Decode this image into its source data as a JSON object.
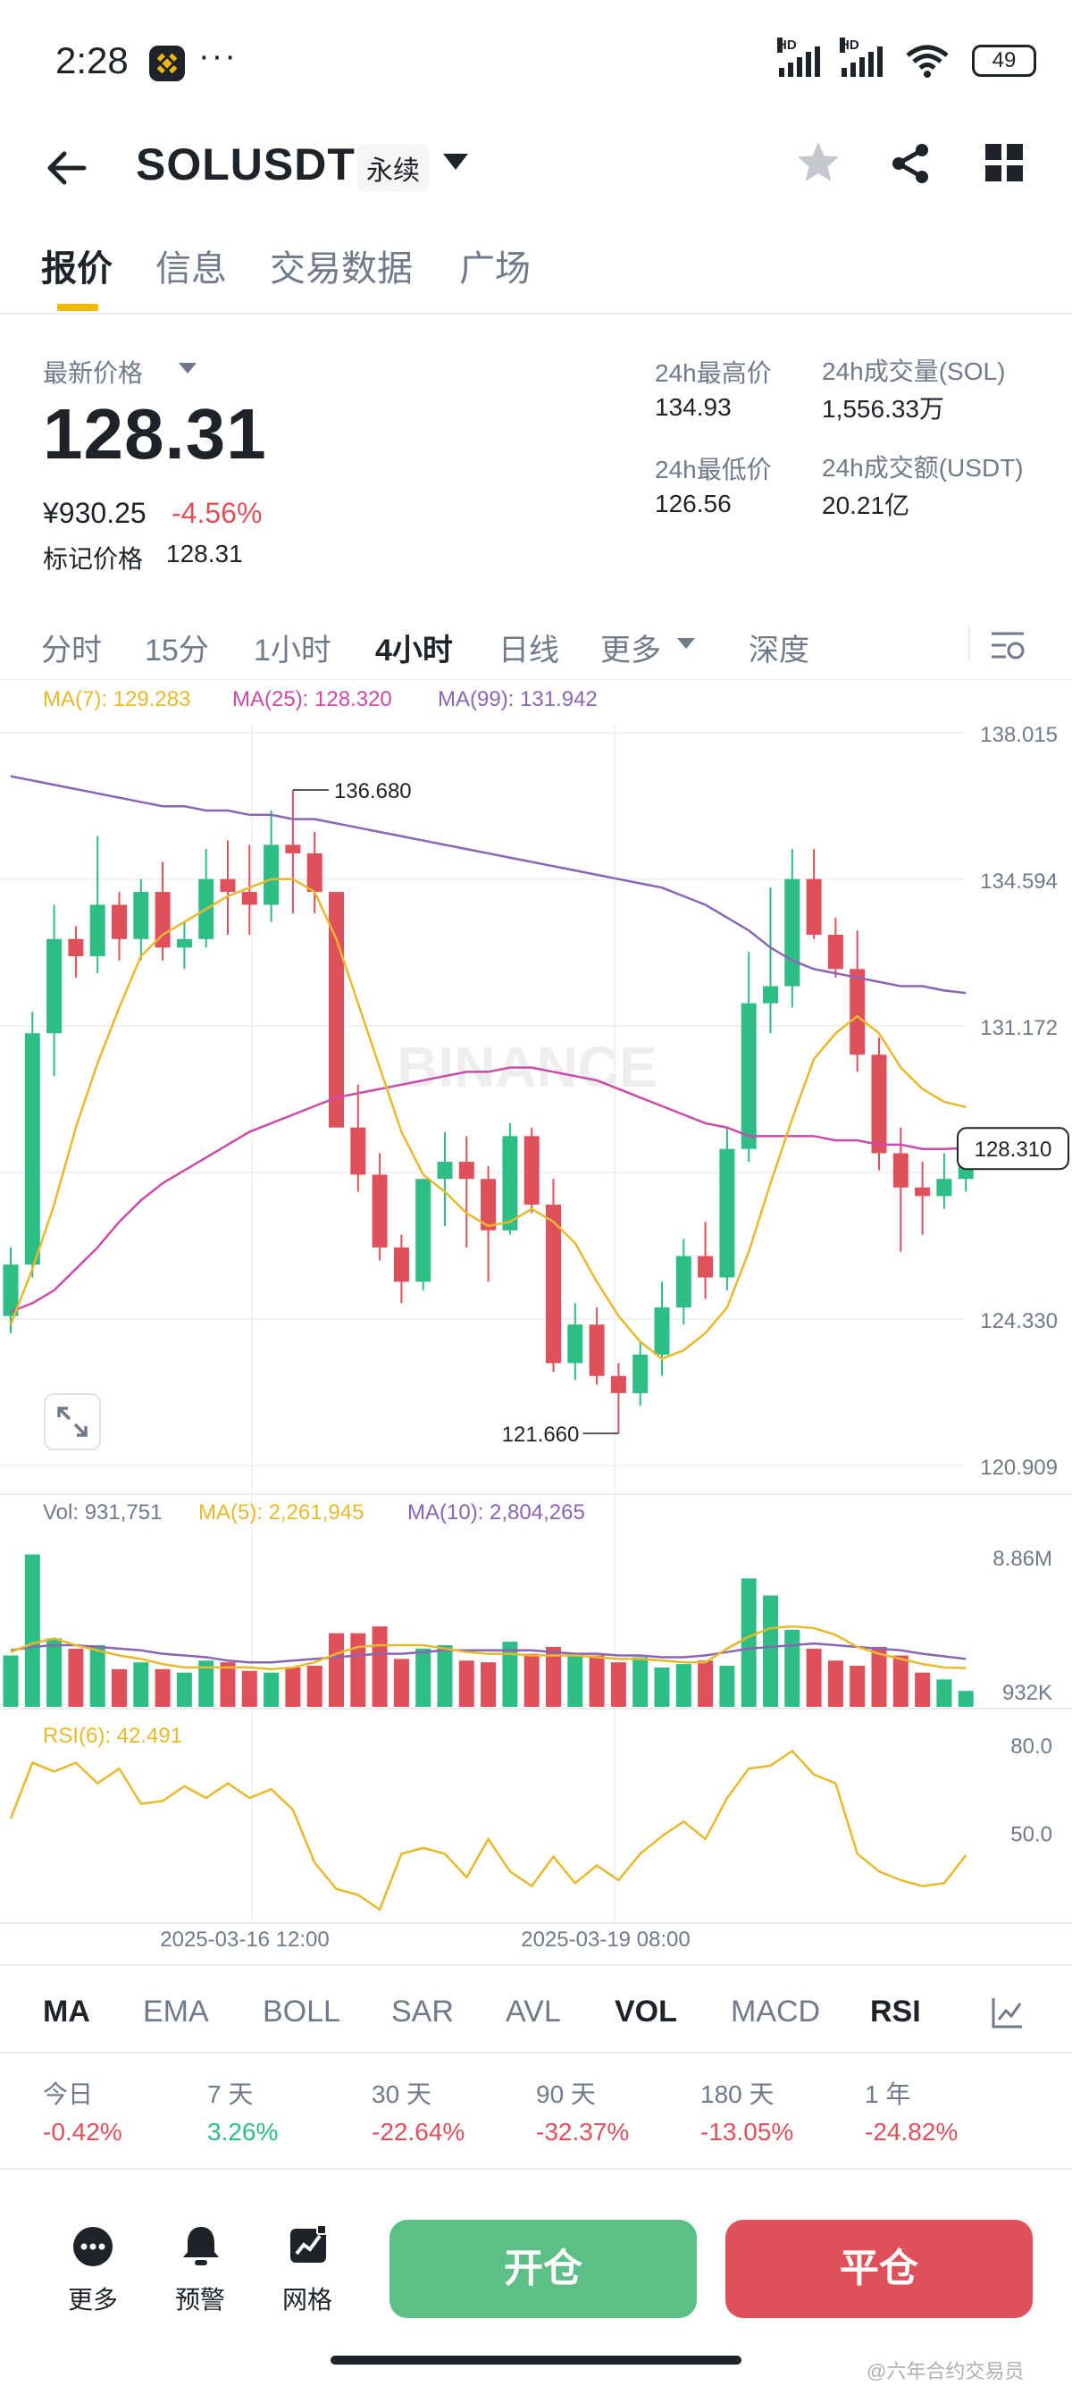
{
  "status_bar": {
    "time": "2:28",
    "dots": "···",
    "battery": "49",
    "hd1": "HD",
    "hd2": "HD"
  },
  "header": {
    "title": "SOLUSDT",
    "badge": "永续"
  },
  "tabs": [
    "报价",
    "信息",
    "交易数据",
    "广场"
  ],
  "price_info": {
    "last_price_label": "最新价格",
    "last_price": "128.31",
    "cny_price": "¥930.25",
    "change_pct": "-4.56%",
    "mark_price_label": "标记价格",
    "mark_price": "128.31",
    "high_label": "24h最高价",
    "high": "134.93",
    "low_label": "24h最低价",
    "low": "126.56",
    "vol_sol_label": "24h成交量(SOL)",
    "vol_sol": "1,556.33万",
    "vol_usdt_label": "24h成交额(USDT)",
    "vol_usdt": "20.21亿"
  },
  "intervals": [
    "分时",
    "15分",
    "1小时",
    "4小时",
    "日线",
    "更多",
    "深度"
  ],
  "active_interval": "4小时",
  "chart_data": {
    "type": "candlestick",
    "ma_legend": {
      "ma7": "MA(7): 129.283",
      "ma25": "MA(25): 128.320",
      "ma99": "MA(99): 131.942"
    },
    "ylim": [
      120.909,
      138.015
    ],
    "y_ticks": [
      "138.015",
      "134.594",
      "131.172",
      "124.330",
      "120.909"
    ],
    "price_tag": "128.310",
    "high_label": "136.680",
    "low_label": "121.660",
    "watermark": "BINANCE",
    "candles": [
      {
        "o": 124.4,
        "h": 126.0,
        "l": 124.0,
        "c": 125.6
      },
      {
        "o": 125.6,
        "h": 131.5,
        "l": 125.3,
        "c": 131.0
      },
      {
        "o": 131.0,
        "h": 134.0,
        "l": 130.0,
        "c": 133.2
      },
      {
        "o": 133.2,
        "h": 133.5,
        "l": 132.3,
        "c": 132.8
      },
      {
        "o": 132.8,
        "h": 135.6,
        "l": 132.4,
        "c": 134.0
      },
      {
        "o": 134.0,
        "h": 134.3,
        "l": 132.7,
        "c": 133.2
      },
      {
        "o": 133.2,
        "h": 134.6,
        "l": 132.7,
        "c": 134.3
      },
      {
        "o": 134.3,
        "h": 135.0,
        "l": 132.7,
        "c": 133.0
      },
      {
        "o": 133.0,
        "h": 133.6,
        "l": 132.5,
        "c": 133.2
      },
      {
        "o": 133.2,
        "h": 135.3,
        "l": 133.0,
        "c": 134.6
      },
      {
        "o": 134.6,
        "h": 135.5,
        "l": 133.3,
        "c": 134.3
      },
      {
        "o": 134.3,
        "h": 135.4,
        "l": 133.3,
        "c": 134.0
      },
      {
        "o": 134.0,
        "h": 136.2,
        "l": 133.6,
        "c": 135.4
      },
      {
        "o": 135.4,
        "h": 136.68,
        "l": 133.8,
        "c": 135.2
      },
      {
        "o": 135.2,
        "h": 135.7,
        "l": 133.8,
        "c": 134.3
      },
      {
        "o": 134.3,
        "h": 134.3,
        "l": 128.8,
        "c": 128.8
      },
      {
        "o": 128.8,
        "h": 129.8,
        "l": 127.3,
        "c": 127.7
      },
      {
        "o": 127.7,
        "h": 128.2,
        "l": 125.7,
        "c": 126.0
      },
      {
        "o": 126.0,
        "h": 126.3,
        "l": 124.7,
        "c": 125.2
      },
      {
        "o": 125.2,
        "h": 127.6,
        "l": 125.0,
        "c": 127.6
      },
      {
        "o": 127.6,
        "h": 128.7,
        "l": 126.5,
        "c": 128.0
      },
      {
        "o": 128.0,
        "h": 128.6,
        "l": 126.0,
        "c": 127.6
      },
      {
        "o": 127.6,
        "h": 127.9,
        "l": 125.2,
        "c": 126.4
      },
      {
        "o": 126.4,
        "h": 128.9,
        "l": 126.3,
        "c": 128.6
      },
      {
        "o": 128.6,
        "h": 128.8,
        "l": 126.8,
        "c": 127.0
      },
      {
        "o": 127.0,
        "h": 127.6,
        "l": 123.1,
        "c": 123.3
      },
      {
        "o": 123.3,
        "h": 124.7,
        "l": 122.9,
        "c": 124.2
      },
      {
        "o": 124.2,
        "h": 124.6,
        "l": 122.8,
        "c": 123.0
      },
      {
        "o": 123.0,
        "h": 123.3,
        "l": 121.66,
        "c": 122.6
      },
      {
        "o": 122.6,
        "h": 123.8,
        "l": 122.3,
        "c": 123.5
      },
      {
        "o": 123.5,
        "h": 125.2,
        "l": 123.0,
        "c": 124.6
      },
      {
        "o": 124.6,
        "h": 126.2,
        "l": 124.2,
        "c": 125.8
      },
      {
        "o": 125.8,
        "h": 126.6,
        "l": 124.8,
        "c": 125.3
      },
      {
        "o": 125.3,
        "h": 128.8,
        "l": 125.0,
        "c": 128.3
      },
      {
        "o": 128.3,
        "h": 132.9,
        "l": 128.0,
        "c": 131.7
      },
      {
        "o": 131.7,
        "h": 134.4,
        "l": 131.0,
        "c": 132.1
      },
      {
        "o": 132.1,
        "h": 135.3,
        "l": 131.6,
        "c": 134.6
      },
      {
        "o": 134.6,
        "h": 135.3,
        "l": 133.2,
        "c": 133.3
      },
      {
        "o": 133.3,
        "h": 133.7,
        "l": 132.3,
        "c": 132.5
      },
      {
        "o": 132.5,
        "h": 133.4,
        "l": 130.1,
        "c": 130.5
      },
      {
        "o": 130.5,
        "h": 130.9,
        "l": 127.8,
        "c": 128.2
      },
      {
        "o": 128.2,
        "h": 128.8,
        "l": 125.9,
        "c": 127.4
      },
      {
        "o": 127.4,
        "h": 128.0,
        "l": 126.3,
        "c": 127.2
      },
      {
        "o": 127.2,
        "h": 128.2,
        "l": 126.9,
        "c": 127.6
      },
      {
        "o": 127.6,
        "h": 128.6,
        "l": 127.3,
        "c": 128.31
      }
    ],
    "ma7": [
      124.2,
      125.5,
      127.0,
      128.8,
      130.3,
      131.6,
      132.8,
      133.3,
      133.6,
      133.9,
      134.2,
      134.4,
      134.6,
      134.6,
      134.3,
      133.2,
      131.7,
      130.2,
      128.7,
      127.7,
      127.3,
      126.8,
      126.5,
      126.6,
      126.9,
      126.6,
      126.1,
      125.2,
      124.4,
      123.8,
      123.4,
      123.6,
      124.0,
      124.6,
      125.9,
      127.5,
      129.0,
      130.4,
      131.0,
      131.4,
      131.0,
      130.2,
      129.7,
      129.4,
      129.28
    ],
    "ma25": [
      124.5,
      124.7,
      125.0,
      125.5,
      126.0,
      126.6,
      127.1,
      127.5,
      127.8,
      128.1,
      128.4,
      128.7,
      128.9,
      129.1,
      129.3,
      129.5,
      129.6,
      129.7,
      129.8,
      129.9,
      130.0,
      130.1,
      130.1,
      130.2,
      130.2,
      130.1,
      130.0,
      129.9,
      129.7,
      129.5,
      129.3,
      129.1,
      128.9,
      128.8,
      128.6,
      128.6,
      128.6,
      128.6,
      128.5,
      128.5,
      128.4,
      128.4,
      128.3,
      128.3,
      128.32
    ],
    "ma99": [
      137.0,
      136.9,
      136.8,
      136.7,
      136.6,
      136.5,
      136.4,
      136.3,
      136.3,
      136.2,
      136.2,
      136.1,
      136.1,
      136.0,
      136.0,
      135.9,
      135.8,
      135.7,
      135.6,
      135.5,
      135.4,
      135.3,
      135.2,
      135.1,
      135.0,
      134.9,
      134.8,
      134.7,
      134.6,
      134.5,
      134.4,
      134.2,
      134.0,
      133.7,
      133.4,
      133.0,
      132.7,
      132.5,
      132.4,
      132.3,
      132.2,
      132.1,
      132.1,
      132.0,
      131.94
    ],
    "volume": {
      "legend": {
        "vol": "Vol: 931,751",
        "ma5": "MA(5): 2,261,945",
        "ma10": "MA(10): 2,804,265"
      },
      "ylim": [
        0,
        9.5
      ],
      "y_ticks": [
        "8.86M",
        "932K"
      ],
      "values": [
        3.0,
        8.9,
        4.0,
        3.4,
        3.6,
        2.2,
        2.6,
        2.2,
        2.0,
        2.7,
        2.6,
        2.1,
        2.0,
        2.3,
        2.4,
        4.3,
        4.3,
        4.7,
        2.8,
        3.4,
        3.6,
        2.7,
        2.6,
        3.8,
        3.1,
        3.5,
        3.1,
        3.0,
        2.6,
        2.9,
        2.3,
        2.5,
        2.7,
        2.4,
        7.5,
        6.5,
        4.5,
        3.4,
        2.7,
        2.4,
        3.5,
        3.0,
        2.0,
        1.6,
        0.93
      ],
      "ma5": [
        3.2,
        3.7,
        4.0,
        3.6,
        3.3,
        3.0,
        2.8,
        2.5,
        2.3,
        2.3,
        2.3,
        2.3,
        2.2,
        2.3,
        2.6,
        3.1,
        3.5,
        3.6,
        3.6,
        3.6,
        3.4,
        3.2,
        3.1,
        3.1,
        3.0,
        3.0,
        3.0,
        2.9,
        2.8,
        2.8,
        2.7,
        2.6,
        2.6,
        3.4,
        4.1,
        4.6,
        4.7,
        4.6,
        4.2,
        3.5,
        3.1,
        2.8,
        2.5,
        2.3,
        2.26
      ],
      "ma10": [
        3.3,
        3.5,
        3.6,
        3.6,
        3.5,
        3.4,
        3.3,
        3.1,
        3.0,
        2.9,
        2.7,
        2.6,
        2.6,
        2.7,
        2.8,
        2.9,
        3.0,
        3.1,
        3.1,
        3.2,
        3.3,
        3.3,
        3.3,
        3.3,
        3.3,
        3.2,
        3.1,
        3.1,
        3.0,
        3.0,
        2.9,
        2.9,
        3.0,
        3.2,
        3.4,
        3.5,
        3.6,
        3.7,
        3.6,
        3.5,
        3.4,
        3.3,
        3.1,
        2.95,
        2.8
      ]
    },
    "rsi": {
      "legend": "RSI(6): 42.491",
      "ylim": [
        20,
        90
      ],
      "y_ticks": [
        "80.0",
        "50.0"
      ],
      "values": [
        55,
        74,
        71,
        74,
        67,
        72,
        60,
        61,
        66,
        62,
        67,
        62,
        65,
        58,
        40,
        31,
        29,
        24,
        43,
        45,
        43,
        35,
        48,
        37,
        32,
        42,
        33,
        39,
        34,
        43,
        49,
        54,
        48,
        62,
        72,
        73,
        78,
        70,
        67,
        43,
        37,
        34,
        32,
        33,
        42.491
      ]
    },
    "x_ticks": [
      "2025-03-16 12:00",
      "2025-03-19 08:00"
    ]
  },
  "indicators": [
    "MA",
    "EMA",
    "BOLL",
    "SAR",
    "AVL",
    "VOL",
    "MACD",
    "RSI"
  ],
  "active_indicators": [
    "MA",
    "VOL",
    "RSI"
  ],
  "performance": [
    {
      "label": "今日",
      "value": "-0.42%",
      "dir": "down"
    },
    {
      "label": "7 天",
      "value": "3.26%",
      "dir": "up"
    },
    {
      "label": "30 天",
      "value": "-22.64%",
      "dir": "down"
    },
    {
      "label": "90 天",
      "value": "-32.37%",
      "dir": "down"
    },
    {
      "label": "180 天",
      "value": "-13.05%",
      "dir": "down"
    },
    {
      "label": "1 年",
      "value": "-24.82%",
      "dir": "down"
    }
  ],
  "bottom_bar": {
    "more": "更多",
    "alert": "预警",
    "grid": "网格",
    "open": "开仓",
    "close": "平仓"
  },
  "colors": {
    "up": "#2ebd85",
    "down": "#e0505a",
    "ma7": "#e8b92c",
    "ma25": "#cc4aa8",
    "ma99": "#8a65b5",
    "accent": "#f0b90b"
  },
  "footer_watermark": "@六年合约交易员"
}
